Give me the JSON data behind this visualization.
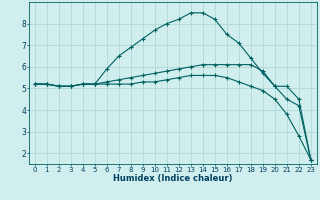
{
  "xlabel": "Humidex (Indice chaleur)",
  "ylabel": "",
  "xlim": [
    -0.5,
    23.5
  ],
  "ylim": [
    1.5,
    9.0
  ],
  "yticks": [
    2,
    3,
    4,
    5,
    6,
    7,
    8
  ],
  "xticks": [
    0,
    1,
    2,
    3,
    4,
    5,
    6,
    7,
    8,
    9,
    10,
    11,
    12,
    13,
    14,
    15,
    16,
    17,
    18,
    19,
    20,
    21,
    22,
    23
  ],
  "bg_color": "#d0eeee",
  "grid_color": "#b0d8d8",
  "line_color": "#006060",
  "line1_x": [
    0,
    1,
    2,
    3,
    4,
    5,
    6,
    7,
    8,
    9,
    10,
    11,
    12,
    13,
    14,
    15,
    16,
    17,
    18,
    19,
    20,
    21,
    22,
    23
  ],
  "line1_y": [
    5.2,
    5.2,
    5.1,
    5.1,
    5.2,
    5.2,
    5.3,
    5.4,
    5.5,
    5.6,
    5.7,
    5.8,
    5.9,
    6.0,
    6.1,
    6.1,
    6.1,
    6.1,
    6.1,
    5.8,
    5.1,
    5.1,
    4.5,
    1.7
  ],
  "line2_x": [
    0,
    1,
    2,
    3,
    4,
    5,
    6,
    7,
    8,
    9,
    10,
    11,
    12,
    13,
    14,
    15,
    16,
    17,
    18,
    19,
    20,
    21,
    22,
    23
  ],
  "line2_y": [
    5.2,
    5.2,
    5.1,
    5.1,
    5.2,
    5.2,
    5.9,
    6.5,
    6.9,
    7.3,
    7.7,
    8.0,
    8.2,
    8.5,
    8.5,
    8.2,
    7.5,
    7.1,
    6.4,
    5.7,
    5.1,
    4.5,
    4.2,
    1.7
  ],
  "line3_x": [
    0,
    1,
    2,
    3,
    4,
    5,
    6,
    7,
    8,
    9,
    10,
    11,
    12,
    13,
    14,
    15,
    16,
    17,
    18,
    19,
    20,
    21,
    22,
    23
  ],
  "line3_y": [
    5.2,
    5.2,
    5.1,
    5.1,
    5.2,
    5.2,
    5.2,
    5.2,
    5.2,
    5.3,
    5.3,
    5.4,
    5.5,
    5.6,
    5.6,
    5.6,
    5.5,
    5.3,
    5.1,
    4.9,
    4.5,
    3.8,
    2.8,
    1.7
  ],
  "tick_color": "#004060",
  "tick_fontsize": 5.0,
  "xlabel_fontsize": 6.0
}
